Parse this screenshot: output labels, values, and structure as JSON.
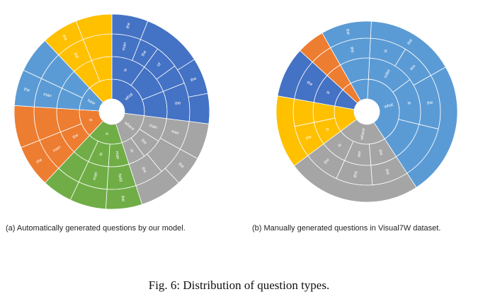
{
  "figure_caption": "Fig. 6: Distribution of question types.",
  "colors": {
    "what": "#4472c4",
    "gray": "#a5a5a5",
    "green": "#70ad47",
    "orange": "#ed7d31",
    "blue_light": "#5b9bd5",
    "yellow": "#ffc000",
    "blue_b": "#5b9bd5",
    "blue_dark_b": "#4472c4"
  },
  "chart_data": [
    {
      "type": "sunburst",
      "caption": "(a) Automatically generated questions by our model.",
      "rings": [
        {
          "level": 1,
          "segments": [
            {
              "label": "what",
              "value": 27,
              "color": "what"
            },
            {
              "label": "where",
              "value": 18,
              "color": "gray"
            },
            {
              "label": "a",
              "value": 17,
              "color": "green"
            },
            {
              "label": "is",
              "value": 14,
              "color": "orange"
            },
            {
              "label": "how",
              "value": 12,
              "color": "blue_light"
            },
            {
              "label": "",
              "value": 12,
              "color": "yellow"
            }
          ]
        },
        {
          "level": 2,
          "segments": [
            {
              "label": "is",
              "value": 10,
              "color": "what"
            },
            {
              "label": "",
              "value": 9,
              "color": "what"
            },
            {
              "label": "",
              "value": 8,
              "color": "what"
            },
            {
              "label": "man",
              "value": 7,
              "color": "gray"
            },
            {
              "label": "the",
              "value": 6,
              "color": "gray"
            },
            {
              "label": "is",
              "value": 5,
              "color": "gray"
            },
            {
              "label": "man",
              "value": 6,
              "color": "green"
            },
            {
              "label": "is",
              "value": 6,
              "color": "green"
            },
            {
              "label": "",
              "value": 5,
              "color": "green"
            },
            {
              "label": "the",
              "value": 7,
              "color": "orange"
            },
            {
              "label": "",
              "value": 7,
              "color": "orange"
            },
            {
              "label": "",
              "value": 6,
              "color": "blue_light"
            },
            {
              "label": "",
              "value": 6,
              "color": "blue_light"
            },
            {
              "label": "",
              "value": 6,
              "color": "yellow"
            },
            {
              "label": "",
              "value": 6,
              "color": "yellow"
            }
          ]
        },
        {
          "level": 3,
          "segments": [
            {
              "label": "man",
              "value": 6,
              "color": "what"
            },
            {
              "label": "the",
              "value": 4,
              "color": "what"
            },
            {
              "label": "of",
              "value": 5,
              "color": "what"
            },
            {
              "label": "",
              "value": 4,
              "color": "what"
            },
            {
              "label": "the",
              "value": 8,
              "color": "what"
            },
            {
              "label": "was",
              "value": 6,
              "color": "gray"
            },
            {
              "label": "",
              "value": 6,
              "color": "gray"
            },
            {
              "label": "the",
              "value": 6,
              "color": "gray"
            },
            {
              "label": "hold",
              "value": 6,
              "color": "green"
            },
            {
              "label": "man",
              "value": 6,
              "color": "green"
            },
            {
              "label": "",
              "value": 5,
              "color": "green"
            },
            {
              "label": "man",
              "value": 7,
              "color": "orange"
            },
            {
              "label": "",
              "value": 7,
              "color": "orange"
            },
            {
              "label": "man",
              "value": 6,
              "color": "blue_light"
            },
            {
              "label": "",
              "value": 6,
              "color": "blue_light"
            },
            {
              "label": "the",
              "value": 6,
              "color": "yellow"
            },
            {
              "label": "",
              "value": 6,
              "color": "yellow"
            }
          ]
        },
        {
          "level": 4,
          "segments": [
            {
              "label": "the",
              "value": 6,
              "color": "what"
            },
            {
              "label": "",
              "value": 10,
              "color": "what"
            },
            {
              "label": "the",
              "value": 6,
              "color": "what"
            },
            {
              "label": "",
              "value": 5,
              "color": "what"
            },
            {
              "label": "",
              "value": 6,
              "color": "gray"
            },
            {
              "label": "the",
              "value": 5,
              "color": "gray"
            },
            {
              "label": "",
              "value": 7,
              "color": "gray"
            },
            {
              "label": "the",
              "value": 6,
              "color": "green"
            },
            {
              "label": "",
              "value": 6,
              "color": "green"
            },
            {
              "label": "",
              "value": 5,
              "color": "green"
            },
            {
              "label": "the",
              "value": 7,
              "color": "orange"
            },
            {
              "label": "",
              "value": 7,
              "color": "orange"
            },
            {
              "label": "the",
              "value": 6,
              "color": "blue_light"
            },
            {
              "label": "",
              "value": 6,
              "color": "blue_light"
            },
            {
              "label": "the",
              "value": 6,
              "color": "yellow"
            },
            {
              "label": "",
              "value": 6,
              "color": "yellow"
            }
          ]
        }
      ]
    },
    {
      "type": "sunburst",
      "caption": "(b) Manually generated questions in Visual7W dataset.",
      "rings": [
        {
          "level": 1,
          "segments": [
            {
              "label": "what",
              "value": 40,
              "color": "blue_b"
            },
            {
              "label": "where",
              "value": 24,
              "color": "gray"
            },
            {
              "label": "",
              "value": 13,
              "color": "yellow"
            },
            {
              "label": "",
              "value": 9,
              "color": "blue_dark_b"
            },
            {
              "label": "",
              "value": 5,
              "color": "orange"
            },
            {
              "label": "",
              "value": 9,
              "color": "blue_b"
            }
          ]
        },
        {
          "level": 2,
          "segments": [
            {
              "label": "color",
              "value": 14,
              "color": "blue_b"
            },
            {
              "label": "is",
              "value": 14,
              "color": "blue_b"
            },
            {
              "label": "",
              "value": 12,
              "color": "blue_b"
            },
            {
              "label": "the",
              "value": 8,
              "color": "gray"
            },
            {
              "label": "are",
              "value": 8,
              "color": "gray"
            },
            {
              "label": "is",
              "value": 8,
              "color": "gray"
            },
            {
              "label": "is",
              "value": 7,
              "color": "yellow"
            },
            {
              "label": "",
              "value": 6,
              "color": "yellow"
            },
            {
              "label": "is",
              "value": 9,
              "color": "blue_dark_b"
            },
            {
              "label": "",
              "value": 5,
              "color": "orange"
            },
            {
              "label": "",
              "value": 9,
              "color": "blue_b"
            }
          ]
        },
        {
          "level": 3,
          "segments": [
            {
              "label": "is",
              "value": 8,
              "color": "blue_b"
            },
            {
              "label": "are",
              "value": 8,
              "color": "blue_b"
            },
            {
              "label": "the",
              "value": 12,
              "color": "blue_b"
            },
            {
              "label": "",
              "value": 12,
              "color": "blue_b"
            },
            {
              "label": "the",
              "value": 8,
              "color": "gray"
            },
            {
              "label": "this",
              "value": 8,
              "color": "gray"
            },
            {
              "label": "the",
              "value": 8,
              "color": "gray"
            },
            {
              "label": "the",
              "value": 7,
              "color": "yellow"
            },
            {
              "label": "",
              "value": 6,
              "color": "yellow"
            },
            {
              "label": "the",
              "value": 9,
              "color": "blue_dark_b"
            },
            {
              "label": "",
              "value": 5,
              "color": "orange"
            },
            {
              "label": "the",
              "value": 9,
              "color": "blue_b"
            }
          ]
        },
        {
          "level": 4,
          "segments": [
            {
              "label": "the",
              "value": 16,
              "color": "blue_b"
            },
            {
              "label": "",
              "value": 24,
              "color": "blue_b"
            },
            {
              "label": "",
              "value": 24,
              "color": "gray"
            },
            {
              "label": "",
              "value": 13,
              "color": "yellow"
            },
            {
              "label": "",
              "value": 9,
              "color": "blue_dark_b"
            },
            {
              "label": "",
              "value": 5,
              "color": "orange"
            },
            {
              "label": "the",
              "value": 9,
              "color": "blue_b"
            }
          ]
        }
      ]
    }
  ]
}
